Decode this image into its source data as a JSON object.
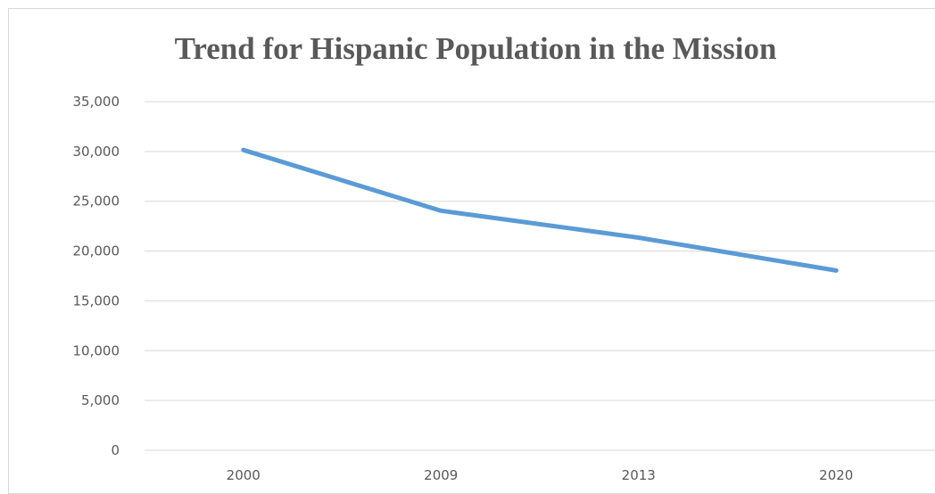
{
  "chart_data": {
    "type": "line",
    "title": "Trend for Hispanic Population in the Mission",
    "xlabel": "",
    "ylabel": "",
    "categories": [
      "2000",
      "2009",
      "2013",
      "2020"
    ],
    "series": [
      {
        "values": [
          30150,
          24050,
          21350,
          18050
        ],
        "color": "#5b9bd5"
      }
    ],
    "ylim": [
      0,
      35000
    ],
    "ytick_step": 5000,
    "ytick_labels": [
      "0",
      "5,000",
      "10,000",
      "15,000",
      "20,000",
      "25,000",
      "30,000",
      "35,000"
    ],
    "grid": true,
    "legend": "none"
  }
}
